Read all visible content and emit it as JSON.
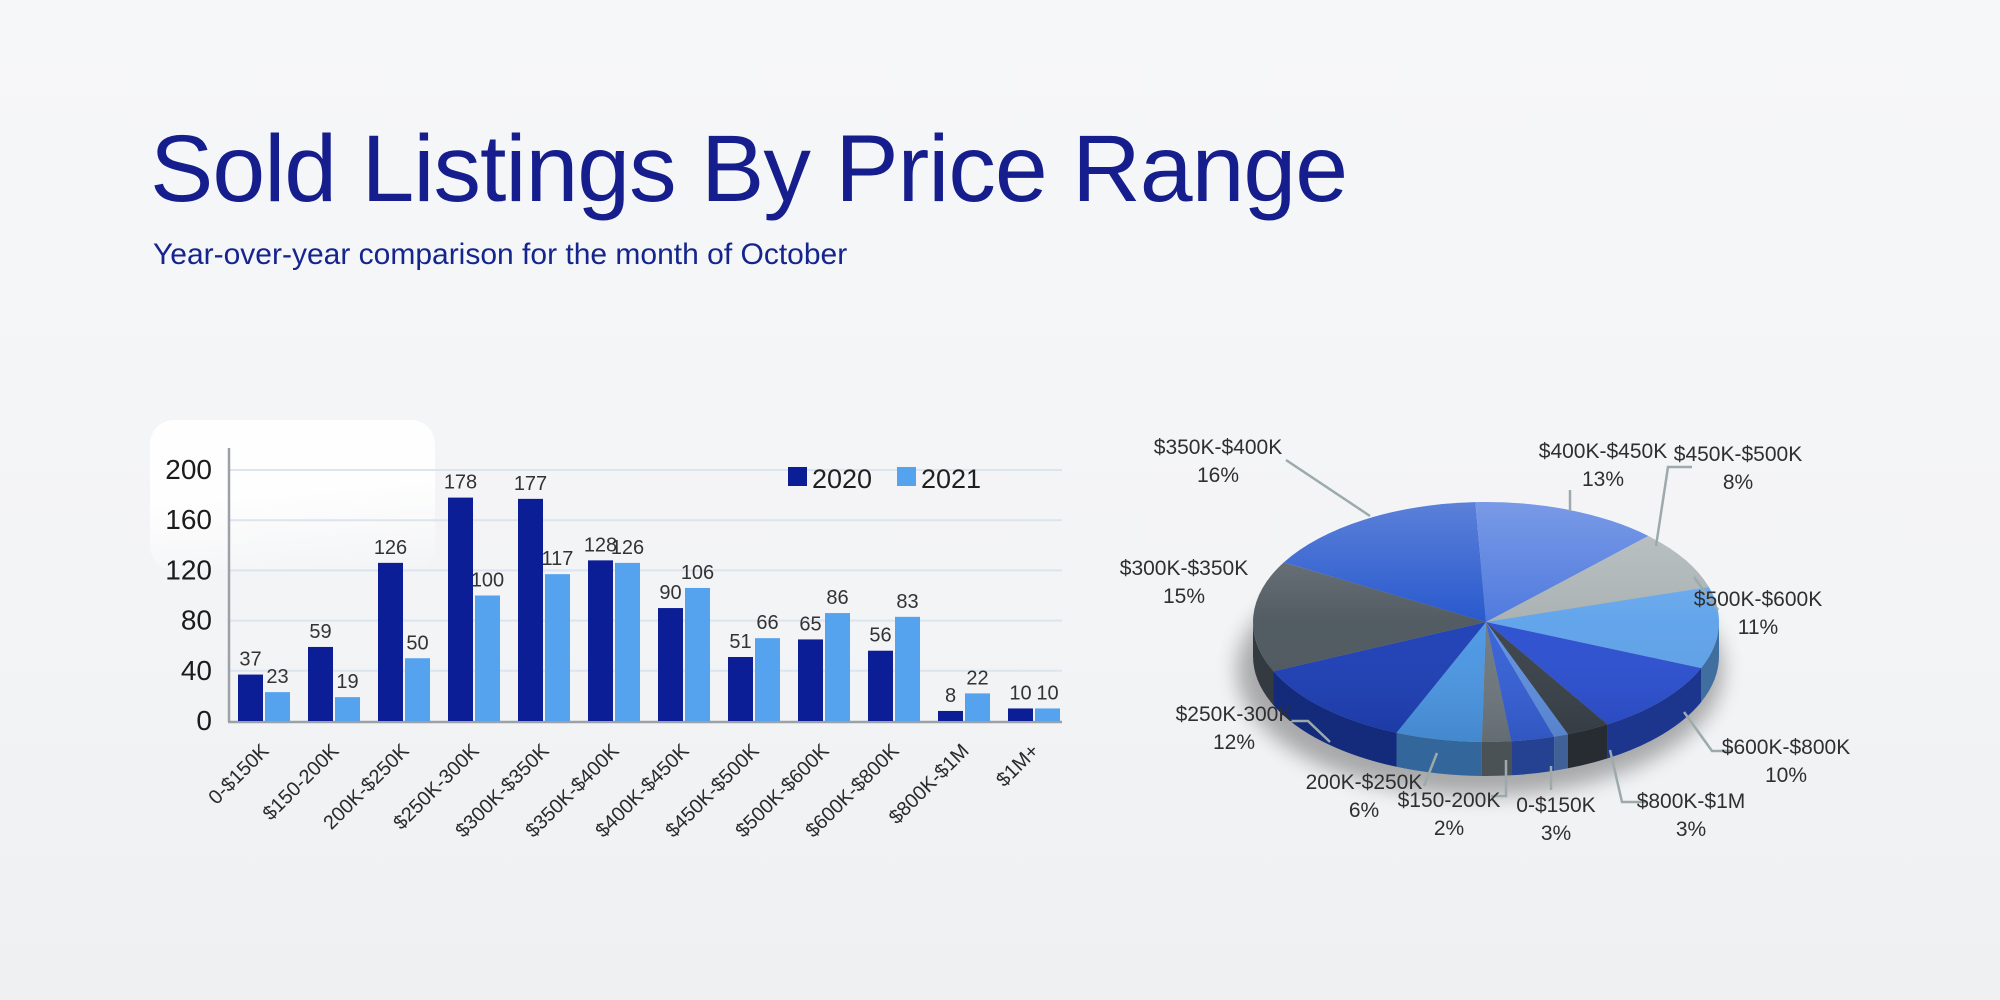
{
  "page": {
    "title": "Sold Listings By Price Range",
    "subtitle": "Year-over-year comparison for the month of October"
  },
  "colors": {
    "background": "#f4f5f6",
    "title_text": "#161d8d",
    "subtitle_text": "#15258d",
    "series_2020": "#0c1e96",
    "series_2021": "#55a2ee",
    "axis": "#9ba1a7",
    "gridline": "#dce4ef",
    "tick_text": "#1c1c1c",
    "value_text": "#333333",
    "legend_text": "#1f1f1f",
    "pie_label_text": "#2f2f2f",
    "leader_line": "#9daaab",
    "pie_palette": [
      "#3560d6",
      "#6e787e",
      "#4b97e4",
      "#1d3fb6",
      "#4d575e",
      "#2254cc",
      "#4a76dd",
      "#a8b0b2",
      "#5ea2ea",
      "#2b4fd0",
      "#394149",
      "#5e8fe0"
    ]
  },
  "chart_data": [
    {
      "type": "bar",
      "title": "",
      "categories": [
        "0-$150K",
        "$150-200K",
        "200K-$250K",
        "$250K-300K",
        "$300K-$350K",
        "$350K-$400K",
        "$400K-$450K",
        "$450K-$500K",
        "$500K-$600K",
        "$600K-$800K",
        "$800K-$1M",
        "$1M+"
      ],
      "series": [
        {
          "name": "2020",
          "values": [
            37,
            59,
            126,
            178,
            177,
            128,
            90,
            51,
            65,
            56,
            8,
            10
          ]
        },
        {
          "name": "2021",
          "values": [
            23,
            19,
            50,
            100,
            117,
            126,
            106,
            66,
            86,
            83,
            22,
            10
          ]
        }
      ],
      "xlabel": "",
      "ylabel": "",
      "ylim": [
        0,
        200
      ],
      "yticks": [
        0,
        40,
        80,
        120,
        160,
        200
      ],
      "grid": true,
      "legend_position": "top-right",
      "value_labels": true
    },
    {
      "type": "pie",
      "style": "3d",
      "labels": [
        "0-$150K",
        "$150-200K",
        "200K-$250K",
        "$250K-300K",
        "$300K-$350K",
        "$350K-$400K",
        "$400K-$450K",
        "$450K-$500K",
        "$500K-$600K",
        "$600K-$800K",
        "$800K-$1M",
        "$1M+"
      ],
      "values": [
        3,
        2,
        6,
        12,
        15,
        16,
        13,
        8,
        11,
        10,
        3,
        1
      ],
      "unit": "%",
      "label_visible": [
        true,
        true,
        true,
        true,
        true,
        true,
        true,
        true,
        true,
        true,
        true,
        false
      ]
    }
  ]
}
